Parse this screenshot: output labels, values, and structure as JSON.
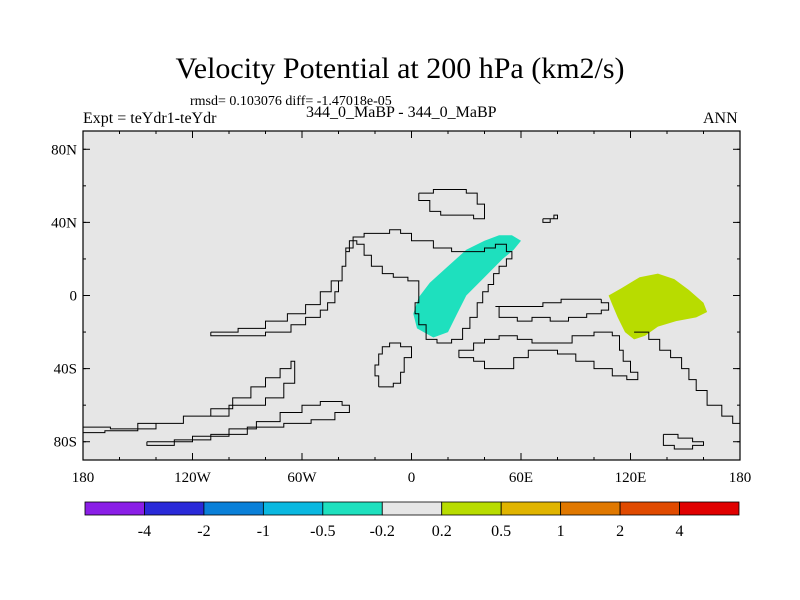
{
  "header": {
    "title": "Velocity Potential at 200 hPa (km2/s)",
    "stats": "rmsd= 0.103076 diff= -1.47018e-05",
    "left_label": "Expt = teYdr1-teYdr",
    "center_label": "344_0_MaBP - 344_0_MaBP",
    "right_label": "ANN"
  },
  "chart_data": {
    "type": "heatmap",
    "title": "Velocity Potential at 200 hPa (km2/s)",
    "projection": "cylindrical-equidistant",
    "xlim": [
      -180,
      180
    ],
    "ylim": [
      -90,
      90
    ],
    "x_ticks": [
      {
        "value": -180,
        "label": "180"
      },
      {
        "value": -120,
        "label": "120W"
      },
      {
        "value": -60,
        "label": "60W"
      },
      {
        "value": 0,
        "label": "0"
      },
      {
        "value": 60,
        "label": "60E"
      },
      {
        "value": 120,
        "label": "120E"
      },
      {
        "value": 180,
        "label": "180"
      }
    ],
    "y_ticks": [
      {
        "value": 80,
        "label": "80N"
      },
      {
        "value": 40,
        "label": "40N"
      },
      {
        "value": 0,
        "label": "0"
      },
      {
        "value": -40,
        "label": "40S"
      },
      {
        "value": -80,
        "label": "80S"
      }
    ],
    "background_color": "#e6e6e6",
    "regions": [
      {
        "name": "negative anomaly (-0.5 to -0.2)",
        "color": "#1ee0be",
        "points": [
          [
            55,
            33
          ],
          [
            60,
            30
          ],
          [
            56,
            25
          ],
          [
            50,
            20
          ],
          [
            40,
            10
          ],
          [
            30,
            0
          ],
          [
            25,
            -10
          ],
          [
            20,
            -20
          ],
          [
            12,
            -23
          ],
          [
            3,
            -18
          ],
          [
            1,
            -10
          ],
          [
            4,
            -1
          ],
          [
            10,
            7
          ],
          [
            20,
            16
          ],
          [
            30,
            25
          ],
          [
            40,
            30
          ],
          [
            48,
            33
          ]
        ]
      },
      {
        "name": "positive anomaly (0.2 to 0.5)",
        "color": "#b8dc00",
        "points": [
          [
            108,
            0
          ],
          [
            115,
            4
          ],
          [
            125,
            10
          ],
          [
            135,
            12
          ],
          [
            144,
            9
          ],
          [
            152,
            3
          ],
          [
            160,
            -4
          ],
          [
            162,
            -9
          ],
          [
            156,
            -12
          ],
          [
            145,
            -14
          ],
          [
            135,
            -17
          ],
          [
            128,
            -22
          ],
          [
            122,
            -24
          ],
          [
            117,
            -20
          ],
          [
            113,
            -12
          ],
          [
            110,
            -5
          ]
        ]
      }
    ],
    "coastlines": [
      [
        [
          -180,
          -72
        ],
        [
          -165,
          -73
        ],
        [
          -150,
          -73
        ],
        [
          -140,
          -70
        ],
        [
          -125,
          -66
        ],
        [
          -110,
          -62
        ],
        [
          -98,
          -56
        ],
        [
          -88,
          -50
        ],
        [
          -80,
          -45
        ],
        [
          -72,
          -40
        ],
        [
          -66,
          -36
        ],
        [
          -64,
          -40
        ],
        [
          -64,
          -48
        ],
        [
          -70,
          -56
        ],
        [
          -80,
          -60
        ],
        [
          -100,
          -66
        ],
        [
          -125,
          -70
        ],
        [
          -150,
          -74
        ],
        [
          -168,
          -75
        ],
        [
          -180,
          -74
        ]
      ],
      [
        [
          -145,
          -80
        ],
        [
          -120,
          -77
        ],
        [
          -100,
          -73
        ],
        [
          -85,
          -69
        ],
        [
          -72,
          -64
        ],
        [
          -60,
          -60
        ],
        [
          -50,
          -58
        ],
        [
          -38,
          -60
        ],
        [
          -34,
          -64
        ],
        [
          -42,
          -68
        ],
        [
          -55,
          -70
        ],
        [
          -70,
          -72
        ],
        [
          -90,
          -76
        ],
        [
          -110,
          -79
        ],
        [
          -130,
          -82
        ],
        [
          -145,
          -82
        ],
        [
          -145,
          -80
        ]
      ],
      [
        [
          -110,
          -20
        ],
        [
          -95,
          -18
        ],
        [
          -80,
          -14
        ],
        [
          -68,
          -10
        ],
        [
          -58,
          -5
        ],
        [
          -50,
          2
        ],
        [
          -44,
          8
        ],
        [
          -38,
          16
        ],
        [
          -36,
          26
        ],
        [
          -32,
          32
        ],
        [
          -26,
          34
        ],
        [
          -18,
          34
        ],
        [
          -12,
          36
        ],
        [
          -6,
          34
        ],
        [
          0,
          30
        ],
        [
          12,
          26
        ],
        [
          22,
          24
        ],
        [
          32,
          24
        ],
        [
          40,
          26
        ],
        [
          46,
          28
        ],
        [
          52,
          24
        ],
        [
          55,
          20
        ],
        [
          52,
          16
        ],
        [
          48,
          12
        ],
        [
          45,
          6
        ],
        [
          42,
          2
        ],
        [
          39,
          -4
        ],
        [
          36,
          -12
        ],
        [
          32,
          -18
        ],
        [
          28,
          -24
        ],
        [
          22,
          -26
        ],
        [
          14,
          -24
        ],
        [
          8,
          -16
        ],
        [
          4,
          -10
        ],
        [
          2,
          -4
        ],
        [
          4,
          2
        ],
        [
          4,
          8
        ],
        [
          -2,
          10
        ],
        [
          -10,
          12
        ],
        [
          -16,
          16
        ],
        [
          -22,
          22
        ],
        [
          -26,
          28
        ],
        [
          -30,
          30
        ],
        [
          -34,
          24
        ],
        [
          -36,
          16
        ],
        [
          -38,
          8
        ],
        [
          -40,
          2
        ],
        [
          -42,
          -4
        ],
        [
          -46,
          -8
        ],
        [
          -50,
          -12
        ],
        [
          -58,
          -16
        ],
        [
          -66,
          -20
        ],
        [
          -80,
          -22
        ],
        [
          -95,
          -22
        ],
        [
          -110,
          -20
        ]
      ],
      [
        [
          -18,
          -50
        ],
        [
          -10,
          -48
        ],
        [
          -6,
          -42
        ],
        [
          -4,
          -34
        ],
        [
          0,
          -28
        ],
        [
          -6,
          -26
        ],
        [
          -12,
          -28
        ],
        [
          -16,
          -32
        ],
        [
          -18,
          -38
        ],
        [
          -20,
          -44
        ],
        [
          -18,
          -50
        ]
      ],
      [
        [
          4,
          56
        ],
        [
          12,
          58
        ],
        [
          22,
          58
        ],
        [
          30,
          56
        ],
        [
          36,
          50
        ],
        [
          40,
          46
        ],
        [
          40,
          42
        ],
        [
          34,
          44
        ],
        [
          28,
          44
        ],
        [
          22,
          44
        ],
        [
          16,
          46
        ],
        [
          10,
          52
        ],
        [
          4,
          56
        ]
      ],
      [
        [
          26,
          -34
        ],
        [
          34,
          -36
        ],
        [
          40,
          -40
        ],
        [
          48,
          -40
        ],
        [
          56,
          -34
        ],
        [
          64,
          -30
        ],
        [
          72,
          -30
        ],
        [
          80,
          -32
        ],
        [
          90,
          -36
        ],
        [
          100,
          -40
        ],
        [
          110,
          -44
        ],
        [
          118,
          -46
        ],
        [
          124,
          -42
        ],
        [
          120,
          -36
        ],
        [
          116,
          -30
        ],
        [
          114,
          -22
        ],
        [
          110,
          -20
        ],
        [
          100,
          -22
        ],
        [
          88,
          -26
        ],
        [
          76,
          -26
        ],
        [
          66,
          -24
        ],
        [
          58,
          -22
        ],
        [
          48,
          -24
        ],
        [
          40,
          -26
        ],
        [
          34,
          -30
        ],
        [
          26,
          -34
        ]
      ],
      [
        [
          104,
          -2
        ],
        [
          94,
          -2
        ],
        [
          82,
          -4
        ],
        [
          72,
          -6
        ],
        [
          62,
          -6
        ],
        [
          52,
          -6
        ],
        [
          46,
          -6
        ],
        [
          48,
          -12
        ],
        [
          58,
          -14
        ],
        [
          66,
          -12
        ],
        [
          76,
          -14
        ],
        [
          86,
          -12
        ],
        [
          96,
          -10
        ],
        [
          104,
          -8
        ],
        [
          108,
          -4
        ],
        [
          104,
          -2
        ]
      ],
      [
        [
          122,
          -20
        ],
        [
          130,
          -24
        ],
        [
          136,
          -30
        ],
        [
          142,
          -34
        ],
        [
          148,
          -40
        ],
        [
          152,
          -46
        ],
        [
          156,
          -52
        ],
        [
          162,
          -60
        ],
        [
          170,
          -66
        ],
        [
          176,
          -70
        ],
        [
          180,
          -72
        ]
      ],
      [
        [
          138,
          -76
        ],
        [
          146,
          -78
        ],
        [
          154,
          -80
        ],
        [
          160,
          -82
        ],
        [
          154,
          -84
        ],
        [
          144,
          -82
        ],
        [
          138,
          -78
        ],
        [
          138,
          -76
        ]
      ],
      [
        [
          72,
          42
        ],
        [
          78,
          44
        ],
        [
          80,
          42
        ],
        [
          76,
          40
        ],
        [
          72,
          42
        ]
      ]
    ],
    "colorbar": {
      "colors": [
        "#8a1ee6",
        "#2a2ad8",
        "#0a80d8",
        "#0ab8e0",
        "#1ee0be",
        "#e6e6e6",
        "#b8dc00",
        "#e0b400",
        "#e07800",
        "#e04a00",
        "#e00000"
      ],
      "labels": [
        "-4",
        "-2",
        "-1",
        "-0.5",
        "-0.2",
        "0.2",
        "0.5",
        "1",
        "2",
        "4"
      ]
    }
  }
}
